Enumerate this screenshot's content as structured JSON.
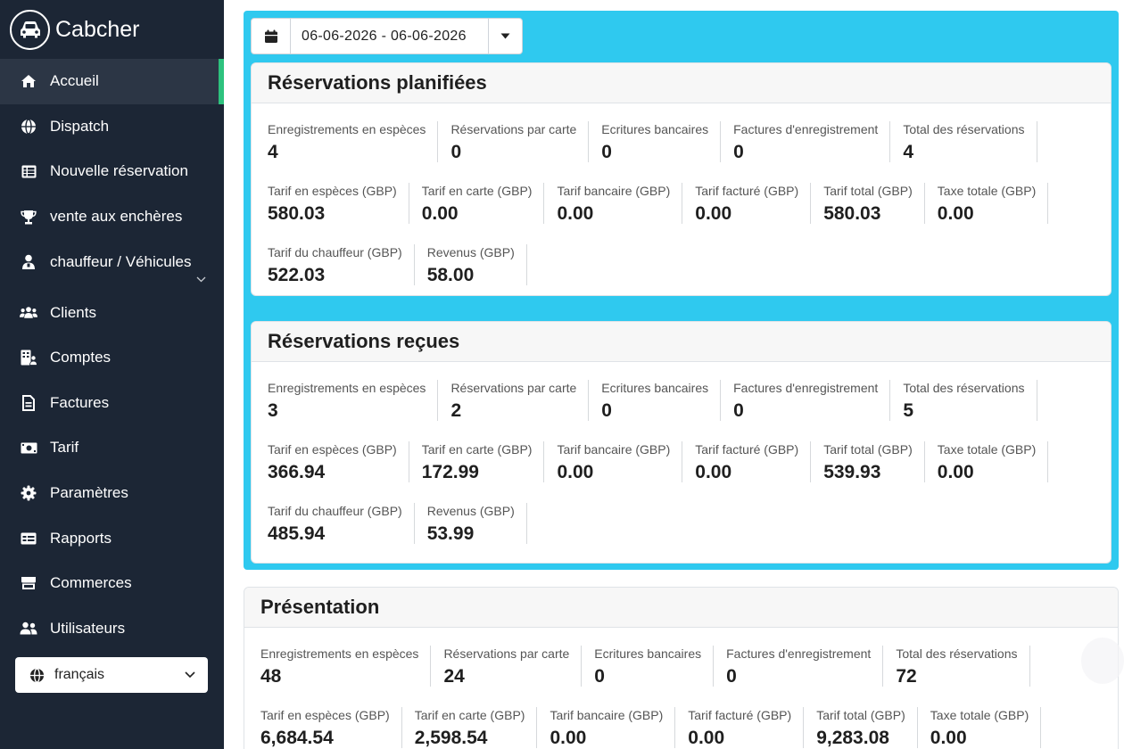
{
  "brand": {
    "name": "Cabcher"
  },
  "sidebar": {
    "items": [
      {
        "label": "Accueil",
        "icon": "home-icon",
        "active": true
      },
      {
        "label": "Dispatch",
        "icon": "globe-icon"
      },
      {
        "label": "Nouvelle réservation",
        "icon": "table-icon"
      },
      {
        "label": "vente aux enchères",
        "icon": "trophy-icon"
      },
      {
        "label": "chauffeur / Véhicules",
        "icon": "driver-icon",
        "has_submenu": true
      },
      {
        "label": "Clients",
        "icon": "users-icon"
      },
      {
        "label": "Comptes",
        "icon": "building-user-icon"
      },
      {
        "label": "Factures",
        "icon": "invoice-icon"
      },
      {
        "label": "Tarif",
        "icon": "money-bill-icon"
      },
      {
        "label": "Paramètres",
        "icon": "gear-icon"
      },
      {
        "label": "Rapports",
        "icon": "id-card-icon"
      },
      {
        "label": "Commerces",
        "icon": "store-icon"
      },
      {
        "label": "Utilisateurs",
        "icon": "user-group-icon"
      }
    ],
    "language": {
      "value": "français",
      "icon": "globe-icon"
    }
  },
  "date_range": {
    "value": "06-06-2026 - 06-06-2026"
  },
  "sections": [
    {
      "title": "Réservations planifiées",
      "rows": [
        [
          {
            "label": "Enregistrements en espèces",
            "value": "4"
          },
          {
            "label": "Réservations par carte",
            "value": "0"
          },
          {
            "label": "Ecritures bancaires",
            "value": "0"
          },
          {
            "label": "Factures d'enregistrement",
            "value": "0"
          },
          {
            "label": "Total des réservations",
            "value": "4"
          }
        ],
        [
          {
            "label": "Tarif en espèces (GBP)",
            "value": "580.03"
          },
          {
            "label": "Tarif en carte (GBP)",
            "value": "0.00"
          },
          {
            "label": "Tarif bancaire (GBP)",
            "value": "0.00"
          },
          {
            "label": "Tarif facturé (GBP)",
            "value": "0.00"
          },
          {
            "label": "Tarif total (GBP)",
            "value": "580.03"
          },
          {
            "label": "Taxe totale (GBP)",
            "value": "0.00"
          }
        ],
        [
          {
            "label": "Tarif du chauffeur (GBP)",
            "value": "522.03"
          },
          {
            "label": "Revenus (GBP)",
            "value": "58.00"
          }
        ]
      ]
    },
    {
      "title": "Réservations reçues",
      "rows": [
        [
          {
            "label": "Enregistrements en espèces",
            "value": "3"
          },
          {
            "label": "Réservations par carte",
            "value": "2"
          },
          {
            "label": "Ecritures bancaires",
            "value": "0"
          },
          {
            "label": "Factures d'enregistrement",
            "value": "0"
          },
          {
            "label": "Total des réservations",
            "value": "5"
          }
        ],
        [
          {
            "label": "Tarif en espèces (GBP)",
            "value": "366.94"
          },
          {
            "label": "Tarif en carte (GBP)",
            "value": "172.99"
          },
          {
            "label": "Tarif bancaire (GBP)",
            "value": "0.00"
          },
          {
            "label": "Tarif facturé (GBP)",
            "value": "0.00"
          },
          {
            "label": "Tarif total (GBP)",
            "value": "539.93"
          },
          {
            "label": "Taxe totale (GBP)",
            "value": "0.00"
          }
        ],
        [
          {
            "label": "Tarif du chauffeur (GBP)",
            "value": "485.94"
          },
          {
            "label": "Revenus (GBP)",
            "value": "53.99"
          }
        ]
      ]
    },
    {
      "title": "Présentation",
      "rows": [
        [
          {
            "label": "Enregistrements en espèces",
            "value": "48"
          },
          {
            "label": "Réservations par carte",
            "value": "24"
          },
          {
            "label": "Ecritures bancaires",
            "value": "0"
          },
          {
            "label": "Factures d'enregistrement",
            "value": "0"
          },
          {
            "label": "Total des réservations",
            "value": "72"
          }
        ],
        [
          {
            "label": "Tarif en espèces (GBP)",
            "value": "6,684.54"
          },
          {
            "label": "Tarif en carte (GBP)",
            "value": "2,598.54"
          },
          {
            "label": "Tarif bancaire (GBP)",
            "value": "0.00"
          },
          {
            "label": "Tarif facturé (GBP)",
            "value": "0.00"
          },
          {
            "label": "Tarif total (GBP)",
            "value": "9,283.08"
          },
          {
            "label": "Taxe totale (GBP)",
            "value": "0.00"
          }
        ]
      ]
    }
  ],
  "colors": {
    "sidebar_bg": "#1c2635",
    "highlight": "#2fc9ef",
    "active_indicator": "#2ec27e"
  }
}
